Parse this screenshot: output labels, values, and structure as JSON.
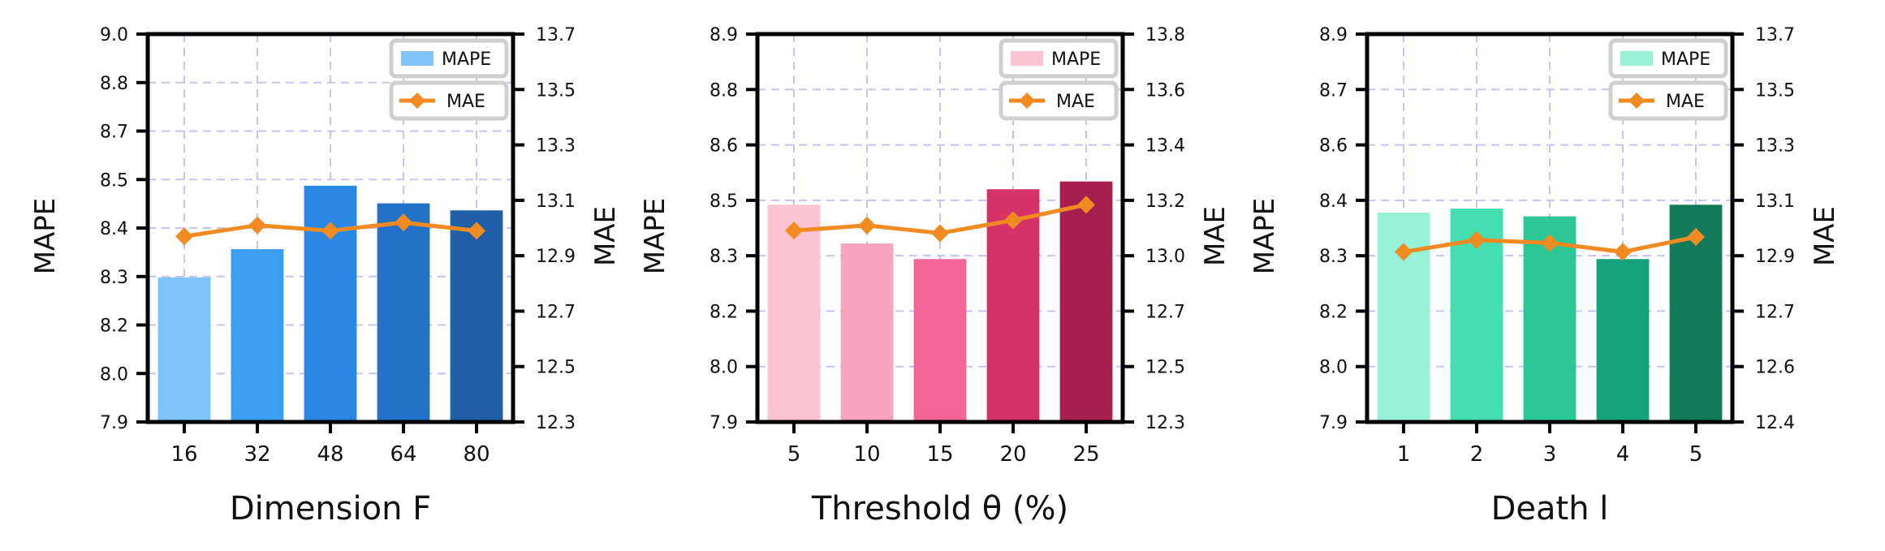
{
  "chart_data": [
    {
      "type": "bar",
      "xlabel": "Dimension F",
      "ylabel": "MAPE",
      "ylabel_right": "MAE",
      "categories": [
        "16",
        "32",
        "48",
        "64",
        "80"
      ],
      "ylim": [
        7.9,
        9.0
      ],
      "yticks": [
        "7.9",
        "8.0",
        "8.2",
        "8.3",
        "8.4",
        "8.5",
        "8.7",
        "8.8",
        "9.0"
      ],
      "ylim_right": [
        12.3,
        13.7
      ],
      "yticks_right": [
        "12.3",
        "12.5",
        "12.7",
        "12.9",
        "13.1",
        "13.3",
        "13.5",
        "13.7"
      ],
      "grid": true,
      "legend_position": "top-right",
      "series": [
        {
          "name": "MAPE",
          "axis": "left",
          "kind": "bar",
          "values": [
            8.31,
            8.39,
            8.57,
            8.52,
            8.5
          ],
          "colors": [
            "#7cc4fb",
            "#3c9ef0",
            "#2888e3",
            "#2272c9",
            "#1f5fa8"
          ]
        },
        {
          "name": "MAE",
          "axis": "right",
          "kind": "line",
          "values": [
            12.97,
            13.01,
            12.99,
            13.02,
            12.99
          ],
          "color": "#f28a22"
        }
      ]
    },
    {
      "type": "bar",
      "xlabel": "Threshold θ (%)",
      "ylabel": "MAPE",
      "ylabel_right": "MAE",
      "categories": [
        "5",
        "10",
        "15",
        "20",
        "25"
      ],
      "ylim": [
        7.9,
        8.9
      ],
      "yticks": [
        "7.9",
        "8.0",
        "8.2",
        "8.3",
        "8.5",
        "8.6",
        "8.8",
        "8.9"
      ],
      "ylim_right": [
        12.3,
        13.8
      ],
      "yticks_right": [
        "12.3",
        "12.5",
        "12.7",
        "13.0",
        "13.2",
        "13.4",
        "13.6",
        "13.8"
      ],
      "grid": true,
      "legend_position": "top-right",
      "series": [
        {
          "name": "MAPE",
          "axis": "left",
          "kind": "bar",
          "values": [
            8.46,
            8.36,
            8.32,
            8.5,
            8.52
          ],
          "colors": [
            "#fcc3d2",
            "#f9a1bf",
            "#f26596",
            "#d6336b",
            "#a61e4d"
          ]
        },
        {
          "name": "MAE",
          "axis": "right",
          "kind": "line",
          "values": [
            13.04,
            13.06,
            13.03,
            13.08,
            13.14
          ],
          "color": "#f28a22"
        }
      ]
    },
    {
      "type": "bar",
      "xlabel": "Death l",
      "ylabel": "MAPE",
      "ylabel_right": "MAE",
      "categories": [
        "1",
        "2",
        "3",
        "4",
        "5"
      ],
      "ylim": [
        7.9,
        8.9
      ],
      "yticks": [
        "7.9",
        "8.0",
        "8.2",
        "8.3",
        "8.4",
        "8.6",
        "8.7",
        "8.9"
      ],
      "ylim_right": [
        12.4,
        13.7
      ],
      "yticks_right": [
        "12.4",
        "12.6",
        "12.7",
        "12.9",
        "13.1",
        "13.3",
        "13.5",
        "13.7"
      ],
      "grid": true,
      "legend_position": "top-right",
      "series": [
        {
          "name": "MAPE",
          "axis": "left",
          "kind": "bar",
          "values": [
            8.44,
            8.45,
            8.43,
            8.32,
            8.46
          ],
          "colors": [
            "#97f2d8",
            "#45deb1",
            "#2bc797",
            "#14a37a",
            "#127a58"
          ]
        },
        {
          "name": "MAE",
          "axis": "right",
          "kind": "line",
          "values": [
            12.97,
            13.01,
            13.0,
            12.97,
            13.02
          ],
          "color": "#f28a22"
        }
      ]
    }
  ]
}
